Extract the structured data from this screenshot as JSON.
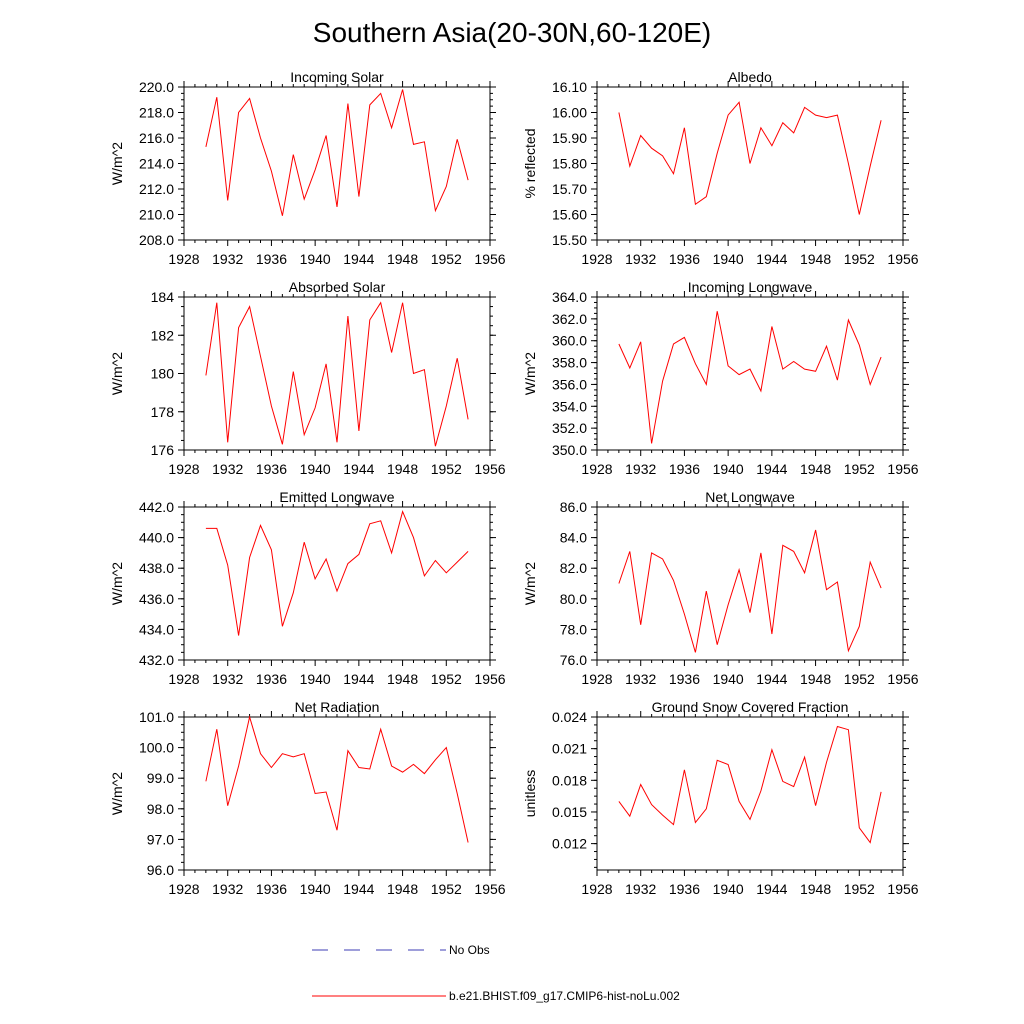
{
  "title": "Southern Asia(20-30N,60-120E)",
  "legend": {
    "items": [
      {
        "label": "No Obs",
        "color": "#3c3cb4",
        "dash": true
      },
      {
        "label": "b.e21.BHIST.f09_g17.CMIP6-hist-noLu.002",
        "color": "#ff0000",
        "dash": false
      }
    ]
  },
  "chart_data": [
    {
      "type": "line",
      "title": "Incoming Solar",
      "ylabel": "W/m^2",
      "xlim": [
        1928,
        1956
      ],
      "xticks": [
        "1928",
        "1932",
        "1936",
        "1940",
        "1944",
        "1948",
        "1952",
        "1956"
      ],
      "ylim": [
        208,
        220
      ],
      "yticks": [
        "208.0",
        "210.0",
        "212.0",
        "214.0",
        "216.0",
        "218.0",
        "220.0"
      ],
      "series": [
        {
          "color": "#ff0000",
          "x": [
            1930,
            1931,
            1932,
            1933,
            1934,
            1935,
            1936,
            1937,
            1938,
            1939,
            1940,
            1941,
            1942,
            1943,
            1944,
            1945,
            1946,
            1947,
            1948,
            1949,
            1950,
            1951,
            1952,
            1953,
            1954
          ],
          "values": [
            215.3,
            219.2,
            211.1,
            218.0,
            219.1,
            216.0,
            213.4,
            209.9,
            214.7,
            211.2,
            213.5,
            216.2,
            210.6,
            218.7,
            211.4,
            218.6,
            219.5,
            216.8,
            219.8,
            215.5,
            215.7,
            210.3,
            212.2,
            215.9,
            212.7
          ]
        }
      ]
    },
    {
      "type": "line",
      "title": "Albedo",
      "ylabel": "% reflected",
      "xlim": [
        1928,
        1956
      ],
      "xticks": [
        "1928",
        "1932",
        "1936",
        "1940",
        "1944",
        "1948",
        "1952",
        "1956"
      ],
      "ylim": [
        15.5,
        16.1
      ],
      "yticks": [
        "15.50",
        "15.60",
        "15.70",
        "15.80",
        "15.90",
        "16.00",
        "16.10"
      ],
      "series": [
        {
          "color": "#ff0000",
          "x": [
            1930,
            1931,
            1932,
            1933,
            1934,
            1935,
            1936,
            1937,
            1938,
            1939,
            1940,
            1941,
            1942,
            1943,
            1944,
            1945,
            1946,
            1947,
            1948,
            1949,
            1950,
            1951,
            1952,
            1953,
            1954
          ],
          "values": [
            16.0,
            15.79,
            15.91,
            15.86,
            15.83,
            15.76,
            15.94,
            15.64,
            15.67,
            15.84,
            15.99,
            16.04,
            15.8,
            15.94,
            15.87,
            15.96,
            15.92,
            16.02,
            15.99,
            15.98,
            15.99,
            15.8,
            15.6,
            15.79,
            15.97
          ]
        }
      ]
    },
    {
      "type": "line",
      "title": "Absorbed Solar",
      "ylabel": "W/m^2",
      "xlim": [
        1928,
        1956
      ],
      "xticks": [
        "1928",
        "1932",
        "1936",
        "1940",
        "1944",
        "1948",
        "1952",
        "1956"
      ],
      "ylim": [
        176,
        184
      ],
      "yticks": [
        "176",
        "178",
        "180",
        "182",
        "184"
      ],
      "series": [
        {
          "color": "#ff0000",
          "x": [
            1930,
            1931,
            1932,
            1933,
            1934,
            1935,
            1936,
            1937,
            1938,
            1939,
            1940,
            1941,
            1942,
            1943,
            1944,
            1945,
            1946,
            1947,
            1948,
            1949,
            1950,
            1951,
            1952,
            1953,
            1954
          ],
          "values": [
            179.9,
            183.7,
            176.4,
            182.4,
            183.5,
            180.9,
            178.3,
            176.3,
            180.1,
            176.8,
            178.2,
            180.5,
            176.4,
            183.0,
            177.0,
            182.8,
            183.7,
            181.1,
            183.7,
            180.0,
            180.2,
            176.2,
            178.3,
            180.8,
            177.6
          ]
        }
      ]
    },
    {
      "type": "line",
      "title": "Incoming Longwave",
      "ylabel": "W/m^2",
      "xlim": [
        1928,
        1956
      ],
      "xticks": [
        "1928",
        "1932",
        "1936",
        "1940",
        "1944",
        "1948",
        "1952",
        "1956"
      ],
      "ylim": [
        350,
        364
      ],
      "yticks": [
        "350.0",
        "352.0",
        "354.0",
        "356.0",
        "358.0",
        "360.0",
        "362.0",
        "364.0"
      ],
      "series": [
        {
          "color": "#ff0000",
          "x": [
            1930,
            1931,
            1932,
            1933,
            1934,
            1935,
            1936,
            1937,
            1938,
            1939,
            1940,
            1941,
            1942,
            1943,
            1944,
            1945,
            1946,
            1947,
            1948,
            1949,
            1950,
            1951,
            1952,
            1953,
            1954
          ],
          "values": [
            359.7,
            357.5,
            359.9,
            350.6,
            356.3,
            359.7,
            360.3,
            357.9,
            356.0,
            362.7,
            357.7,
            356.9,
            357.4,
            355.4,
            361.3,
            357.4,
            358.1,
            357.4,
            357.2,
            359.5,
            356.4,
            361.9,
            359.6,
            356.0,
            358.5
          ]
        }
      ]
    },
    {
      "type": "line",
      "title": "Emitted Longwave",
      "ylabel": "W/m^2",
      "xlim": [
        1928,
        1956
      ],
      "xticks": [
        "1928",
        "1932",
        "1936",
        "1940",
        "1944",
        "1948",
        "1952",
        "1956"
      ],
      "ylim": [
        432,
        442
      ],
      "yticks": [
        "432.0",
        "434.0",
        "436.0",
        "438.0",
        "440.0",
        "442.0"
      ],
      "series": [
        {
          "color": "#ff0000",
          "x": [
            1930,
            1931,
            1932,
            1933,
            1934,
            1935,
            1936,
            1937,
            1938,
            1939,
            1940,
            1941,
            1942,
            1943,
            1944,
            1945,
            1946,
            1947,
            1948,
            1949,
            1950,
            1951,
            1952,
            1953,
            1954
          ],
          "values": [
            440.6,
            440.6,
            438.2,
            433.6,
            438.7,
            440.8,
            439.2,
            434.2,
            436.4,
            439.7,
            437.3,
            438.6,
            436.5,
            438.3,
            438.9,
            440.9,
            441.1,
            439.0,
            441.7,
            440.0,
            437.5,
            438.5,
            437.7,
            438.4,
            439.1
          ]
        }
      ]
    },
    {
      "type": "line",
      "title": "Net Longwave",
      "ylabel": "W/m^2",
      "xlim": [
        1928,
        1956
      ],
      "xticks": [
        "1928",
        "1932",
        "1936",
        "1940",
        "1944",
        "1948",
        "1952",
        "1956"
      ],
      "ylim": [
        76,
        86
      ],
      "yticks": [
        "76.0",
        "78.0",
        "80.0",
        "82.0",
        "84.0",
        "86.0"
      ],
      "series": [
        {
          "color": "#ff0000",
          "x": [
            1930,
            1931,
            1932,
            1933,
            1934,
            1935,
            1936,
            1937,
            1938,
            1939,
            1940,
            1941,
            1942,
            1943,
            1944,
            1945,
            1946,
            1947,
            1948,
            1949,
            1950,
            1951,
            1952,
            1953,
            1954
          ],
          "values": [
            81.0,
            83.1,
            78.3,
            83.0,
            82.6,
            81.2,
            79.0,
            76.5,
            80.5,
            77.0,
            79.6,
            81.9,
            79.1,
            83.0,
            77.7,
            83.5,
            83.1,
            81.7,
            84.5,
            80.6,
            81.1,
            76.6,
            78.2,
            82.4,
            80.7
          ]
        }
      ]
    },
    {
      "type": "line",
      "title": "Net Radiation",
      "ylabel": "W/m^2",
      "xlim": [
        1928,
        1956
      ],
      "xticks": [
        "1928",
        "1932",
        "1936",
        "1940",
        "1944",
        "1948",
        "1952",
        "1956"
      ],
      "ylim": [
        96,
        101
      ],
      "yticks": [
        "96.0",
        "97.0",
        "98.0",
        "99.0",
        "100.0",
        "101.0"
      ],
      "series": [
        {
          "color": "#ff0000",
          "x": [
            1930,
            1931,
            1932,
            1933,
            1934,
            1935,
            1936,
            1937,
            1938,
            1939,
            1940,
            1941,
            1942,
            1943,
            1944,
            1945,
            1946,
            1947,
            1948,
            1949,
            1950,
            1951,
            1952,
            1953,
            1954
          ],
          "values": [
            98.9,
            100.6,
            98.1,
            99.4,
            101.0,
            99.8,
            99.35,
            99.8,
            99.7,
            99.8,
            98.5,
            98.55,
            97.3,
            99.9,
            99.35,
            99.3,
            100.6,
            99.4,
            99.2,
            99.45,
            99.15,
            99.6,
            100.0,
            98.5,
            96.9
          ]
        }
      ]
    },
    {
      "type": "line",
      "title": "Ground Snow Covered Fraction",
      "ylabel": "unitless",
      "xlim": [
        1928,
        1956
      ],
      "xticks": [
        "1928",
        "1932",
        "1936",
        "1940",
        "1944",
        "1948",
        "1952",
        "1956"
      ],
      "ylim": [
        0.0095,
        0.024
      ],
      "yticks": [
        "0.012",
        "0.015",
        "0.018",
        "0.021",
        "0.024"
      ],
      "series": [
        {
          "color": "#ff0000",
          "x": [
            1930,
            1931,
            1932,
            1933,
            1934,
            1935,
            1936,
            1937,
            1938,
            1939,
            1940,
            1941,
            1942,
            1943,
            1944,
            1945,
            1946,
            1947,
            1948,
            1949,
            1950,
            1951,
            1952,
            1953,
            1954
          ],
          "values": [
            0.016,
            0.0146,
            0.0176,
            0.0157,
            0.0147,
            0.0138,
            0.019,
            0.014,
            0.0153,
            0.0199,
            0.0195,
            0.016,
            0.0143,
            0.017,
            0.0209,
            0.0179,
            0.0174,
            0.0202,
            0.0156,
            0.0197,
            0.0231,
            0.0228,
            0.0135,
            0.0121,
            0.0169
          ]
        }
      ]
    }
  ]
}
